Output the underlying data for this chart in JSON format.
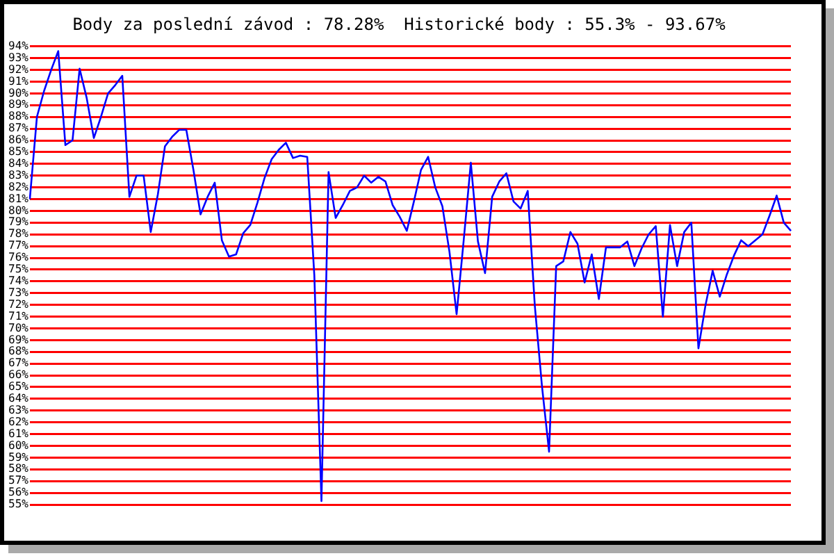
{
  "chart_data": {
    "type": "line",
    "title": "Body za poslední závod : 78.28%  Historické body : 55.3% - 93.67%",
    "categories": [
      null,
      null,
      null,
      null,
      null,
      null,
      null,
      null,
      null,
      null,
      null,
      null,
      null,
      null,
      null,
      null,
      null,
      null,
      null,
      null,
      null,
      null,
      null,
      null,
      null,
      null,
      null,
      null,
      null,
      null,
      null,
      null,
      null,
      null,
      null,
      null,
      null,
      null,
      null,
      null,
      null,
      null,
      null,
      null,
      null,
      null,
      null,
      null,
      null,
      null,
      null,
      null,
      null,
      null,
      null,
      null,
      null,
      null,
      null,
      null,
      null,
      null,
      null,
      null,
      null,
      null,
      null,
      null,
      null,
      null,
      null,
      null,
      null,
      null,
      null,
      null,
      null,
      null,
      null,
      null,
      null,
      null,
      null,
      null,
      null,
      null,
      null,
      null,
      null,
      null,
      null,
      null,
      null,
      null,
      null,
      null,
      null,
      null,
      null,
      null,
      null,
      null,
      null,
      null,
      null,
      null,
      null,
      null
    ],
    "series": [
      {
        "color": "#0000ff",
        "values": [
          81.0,
          88.0,
          90.2,
          92.0,
          93.6,
          85.6,
          86.0,
          92.1,
          89.6,
          86.2,
          88.0,
          90.0,
          90.7,
          91.5,
          81.2,
          83.0,
          83.0,
          78.2,
          81.4,
          85.5,
          86.3,
          86.9,
          86.9,
          83.5,
          79.7,
          81.2,
          82.4,
          77.5,
          76.1,
          76.3,
          78.1,
          78.8,
          80.7,
          82.8,
          84.4,
          85.2,
          85.8,
          84.5,
          84.7,
          84.6,
          74.5,
          55.3,
          83.3,
          79.4,
          80.5,
          81.7,
          82.0,
          83.0,
          82.4,
          82.9,
          82.5,
          80.5,
          79.5,
          78.3,
          80.8,
          83.5,
          84.6,
          82.0,
          80.4,
          76.5,
          71.2,
          77.5,
          84.1,
          77.4,
          74.7,
          81.2,
          82.5,
          83.2,
          80.8,
          80.2,
          81.7,
          71.9,
          65.1,
          59.5,
          75.3,
          75.7,
          78.2,
          77.2,
          73.9,
          76.3,
          72.5,
          76.9,
          76.9,
          76.9,
          77.4,
          75.3,
          76.8,
          78.0,
          78.7,
          71.0,
          78.8,
          75.3,
          78.2,
          79.0,
          68.3,
          72.0,
          74.9,
          72.7,
          74.6,
          76.2,
          77.5,
          77.0,
          77.5,
          78.0,
          79.6,
          81.3,
          79.0,
          78.3
        ]
      }
    ],
    "ylim": [
      55,
      94
    ],
    "yticks": [
      {
        "value": 55,
        "label": "55%"
      },
      {
        "value": 56,
        "label": "56%"
      },
      {
        "value": 57,
        "label": "57%"
      },
      {
        "value": 58,
        "label": "58%"
      },
      {
        "value": 59,
        "label": "59%"
      },
      {
        "value": 60,
        "label": "60%"
      },
      {
        "value": 61,
        "label": "61%"
      },
      {
        "value": 62,
        "label": "62%"
      },
      {
        "value": 63,
        "label": "63%"
      },
      {
        "value": 64,
        "label": "64%"
      },
      {
        "value": 65,
        "label": "65%"
      },
      {
        "value": 66,
        "label": "66%"
      },
      {
        "value": 67,
        "label": "67%"
      },
      {
        "value": 68,
        "label": "68%"
      },
      {
        "value": 69,
        "label": "69%"
      },
      {
        "value": 70,
        "label": "70%"
      },
      {
        "value": 71,
        "label": "71%"
      },
      {
        "value": 72,
        "label": "72%"
      },
      {
        "value": 73,
        "label": "73%"
      },
      {
        "value": 74,
        "label": "74%"
      },
      {
        "value": 75,
        "label": "75%"
      },
      {
        "value": 76,
        "label": "76%"
      },
      {
        "value": 77,
        "label": "77%"
      },
      {
        "value": 78,
        "label": "78%"
      },
      {
        "value": 79,
        "label": "79%"
      },
      {
        "value": 80,
        "label": "80%"
      },
      {
        "value": 81,
        "label": "81%"
      },
      {
        "value": 82,
        "label": "82%"
      },
      {
        "value": 83,
        "label": "83%"
      },
      {
        "value": 84,
        "label": "84%"
      },
      {
        "value": 85,
        "label": "85%"
      },
      {
        "value": 86,
        "label": "86%"
      },
      {
        "value": 87,
        "label": "87%"
      },
      {
        "value": 88,
        "label": "88%"
      },
      {
        "value": 89,
        "label": "89%"
      },
      {
        "value": 90,
        "label": "90%"
      },
      {
        "value": 91,
        "label": "91%"
      },
      {
        "value": 92,
        "label": "92%"
      },
      {
        "value": 93,
        "label": "93%"
      },
      {
        "value": 94,
        "label": "94%"
      }
    ],
    "tick_labels": "y",
    "grid": "y",
    "legend": false,
    "marker": "none",
    "line_style": "solid"
  }
}
